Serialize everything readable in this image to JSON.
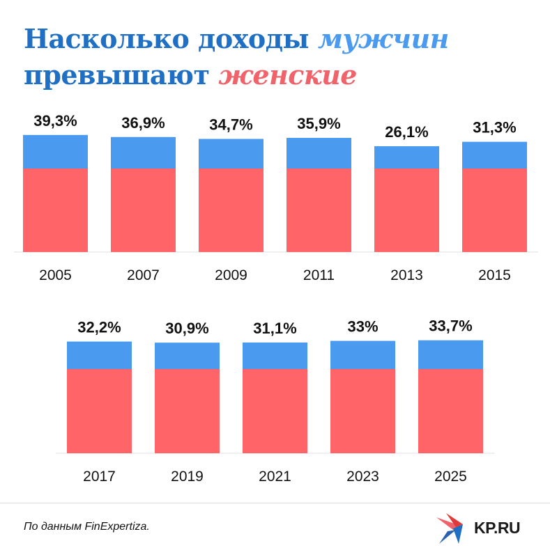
{
  "title": {
    "part1": "Насколько доходы",
    "men": "мужчин",
    "part2": "превышают",
    "women": "женские"
  },
  "colors": {
    "title": "#1f6fc4",
    "men": "#4a9af0",
    "women": "#f0636b",
    "bar_top": "#4a9af0",
    "bar_base": "#ff6468"
  },
  "chart_data": [
    {
      "type": "bar",
      "categories": [
        "2005",
        "2007",
        "2009",
        "2011",
        "2013",
        "2015"
      ],
      "values": [
        39.3,
        36.9,
        34.7,
        35.9,
        26.1,
        31.3
      ],
      "data_labels": [
        "39,3%",
        "36,9%",
        "34,7%",
        "35,9%",
        "26,1%",
        "31,3%"
      ]
    },
    {
      "type": "bar",
      "categories": [
        "2017",
        "2019",
        "2021",
        "2023",
        "2025"
      ],
      "values": [
        32.2,
        30.9,
        31.1,
        33,
        33.7
      ],
      "data_labels": [
        "32,2%",
        "30,9%",
        "31,1%",
        "33%",
        "33,7%"
      ]
    }
  ],
  "footer": {
    "source": "По данным FinExpertiza.",
    "logo_text": "KP.RU"
  }
}
